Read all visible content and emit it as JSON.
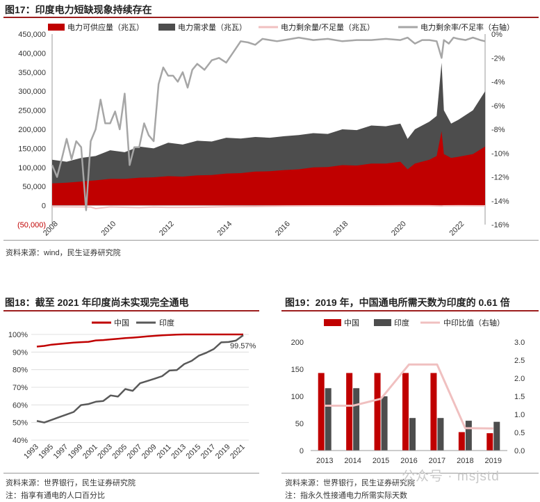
{
  "figures": {
    "fig17": {
      "title": "图17：印度电力短缺现象持续存在",
      "source": "资料来源：wind，民生证券研究院"
    },
    "fig18": {
      "title": "图18：截至 2021 年印度尚未实现完全通电",
      "source": "资料来源：世界银行，民生证券研究院",
      "note": "注：指享有通电的人口百分比"
    },
    "fig19": {
      "title": "图19：2019 年，中国通电所需天数为印度的 0.61 倍",
      "source": "资料来源：世界银行，民生证券研究院",
      "note": "注：指永久性接通电力所需实际天数"
    }
  },
  "watermark": "公众号 · msjstd",
  "colors": {
    "red": "#c00000",
    "gray": "#4d4d4d",
    "pink": "#f0c0c0",
    "lightgray": "#a6a6a6",
    "rule": "#9c1c1c"
  },
  "chart_data": [
    {
      "id": "fig17",
      "type": "area",
      "legend": [
        "电力可供应量（兆瓦）",
        "电力需求量（兆瓦）",
        "电力剩余量/不足量（兆瓦）",
        "电力剩余率/不足率（右轴）"
      ],
      "x_ticks": [
        "2008",
        "2010",
        "2012",
        "2014",
        "2016",
        "2018",
        "2020",
        "2022"
      ],
      "x_range": [
        2008.0,
        2022.92
      ],
      "y_ticks": [
        "450,000",
        "400,000",
        "350,000",
        "300,000",
        "250,000",
        "200,000",
        "150,000",
        "100,000",
        "50,000",
        "0",
        "(50,000)"
      ],
      "ylim": [
        -50000,
        450000
      ],
      "y2_ticks": [
        "0%",
        "-2%",
        "-4%",
        "-6%",
        "-8%",
        "-10%",
        "-12%",
        "-14%",
        "-16%"
      ],
      "y2lim": [
        -16,
        0
      ],
      "series": [
        {
          "name": "电力需求量（兆瓦）",
          "axis": "left",
          "x": [
            2008.0,
            2008.5,
            2009.0,
            2009.5,
            2010.0,
            2010.5,
            2011.0,
            2011.5,
            2012.0,
            2012.5,
            2013.0,
            2013.5,
            2014.0,
            2014.5,
            2015.0,
            2015.5,
            2016.0,
            2016.5,
            2017.0,
            2017.5,
            2018.0,
            2018.5,
            2019.0,
            2019.5,
            2020.0,
            2020.25,
            2020.5,
            2021.0,
            2021.25,
            2021.42,
            2021.5,
            2021.75,
            2022.0,
            2022.5,
            2022.92
          ],
          "values": [
            120000,
            115000,
            125000,
            130000,
            145000,
            140000,
            155000,
            150000,
            165000,
            160000,
            170000,
            168000,
            178000,
            176000,
            180000,
            178000,
            182000,
            185000,
            190000,
            188000,
            200000,
            198000,
            210000,
            208000,
            215000,
            175000,
            200000,
            220000,
            235000,
            375000,
            250000,
            215000,
            225000,
            250000,
            300000
          ]
        },
        {
          "name": "电力可供应量（兆瓦）",
          "axis": "left",
          "x": [
            2008.0,
            2008.5,
            2009.0,
            2009.5,
            2010.0,
            2010.5,
            2011.0,
            2011.5,
            2012.0,
            2012.5,
            2013.0,
            2013.5,
            2014.0,
            2014.5,
            2015.0,
            2015.5,
            2016.0,
            2016.5,
            2017.0,
            2017.5,
            2018.0,
            2018.5,
            2019.0,
            2019.5,
            2020.0,
            2020.25,
            2020.5,
            2021.0,
            2021.25,
            2021.42,
            2021.5,
            2021.75,
            2022.0,
            2022.5,
            2022.92
          ],
          "values": [
            58000,
            60000,
            63000,
            66000,
            70000,
            70000,
            73000,
            74000,
            77000,
            76000,
            79000,
            80000,
            84000,
            85000,
            89000,
            90000,
            93000,
            95000,
            100000,
            101000,
            106000,
            105000,
            110000,
            110000,
            115000,
            95000,
            110000,
            120000,
            130000,
            195000,
            135000,
            125000,
            128000,
            135000,
            155000
          ]
        },
        {
          "name": "电力剩余量/不足量（兆瓦）",
          "axis": "left",
          "x": [
            2008.0,
            2009.33,
            2009.5,
            2010.0,
            2011.0,
            2011.5,
            2012.0,
            2013.0,
            2014.0,
            2015.0,
            2016.0,
            2017.0,
            2018.0,
            2019.0,
            2020.0,
            2021.0,
            2021.42,
            2021.5,
            2022.0,
            2022.92
          ],
          "values": [
            -3000,
            -4000,
            -8000,
            -3500,
            -5500,
            -4000,
            -5000,
            -4500,
            -3000,
            -2500,
            -1500,
            -900,
            -800,
            -700,
            -500,
            -600,
            -1500,
            -800,
            -600,
            -700
          ]
        },
        {
          "name": "电力剩余率/不足率（右轴）",
          "axis": "right",
          "x": [
            2008.0,
            2008.17,
            2008.33,
            2008.5,
            2008.67,
            2008.83,
            2009.0,
            2009.17,
            2009.33,
            2009.5,
            2009.67,
            2009.83,
            2010.0,
            2010.17,
            2010.33,
            2010.5,
            2010.67,
            2010.83,
            2011.0,
            2011.17,
            2011.33,
            2011.5,
            2011.67,
            2011.83,
            2012.0,
            2012.17,
            2012.33,
            2012.5,
            2012.67,
            2012.83,
            2013.0,
            2013.25,
            2013.5,
            2013.75,
            2014.0,
            2014.25,
            2014.5,
            2014.75,
            2015.0,
            2015.25,
            2015.5,
            2015.75,
            2016.0,
            2016.5,
            2017.0,
            2017.5,
            2018.0,
            2018.5,
            2019.0,
            2019.5,
            2020.0,
            2020.25,
            2020.5,
            2020.75,
            2021.0,
            2021.25,
            2021.42,
            2021.5,
            2021.67,
            2021.83,
            2022.0,
            2022.25,
            2022.5,
            2022.75,
            2022.92
          ],
          "values": [
            -11.0,
            -12.0,
            -10.5,
            -8.8,
            -10.5,
            -9.0,
            -9.5,
            -14.8,
            -9.0,
            -8.0,
            -5.5,
            -7.5,
            -7.5,
            -6.5,
            -8.0,
            -5.0,
            -11.0,
            -9.5,
            -9.5,
            -7.5,
            -8.5,
            -9.0,
            -4.2,
            -2.8,
            -3.5,
            -3.5,
            -4.0,
            -3.2,
            -4.5,
            -3.0,
            -2.5,
            -3.0,
            -2.2,
            -2.0,
            -2.4,
            -1.5,
            -0.6,
            -0.7,
            -0.9,
            -0.4,
            -0.5,
            -0.6,
            -0.5,
            -0.3,
            -0.5,
            -0.4,
            -0.6,
            -0.5,
            -0.5,
            -0.4,
            -0.5,
            -0.3,
            -0.8,
            -0.5,
            -0.5,
            -0.6,
            -2.0,
            -0.5,
            -0.8,
            -0.3,
            -0.4,
            -0.5,
            -0.3,
            -0.5,
            -0.6
          ]
        }
      ]
    },
    {
      "id": "fig18",
      "type": "line",
      "legend": [
        "中国",
        "印度"
      ],
      "categories": [
        "1993",
        "1994",
        "1995",
        "1996",
        "1997",
        "1998",
        "1999",
        "2000",
        "2001",
        "2002",
        "2003",
        "2004",
        "2005",
        "2006",
        "2007",
        "2008",
        "2009",
        "2010",
        "2011",
        "2012",
        "2013",
        "2014",
        "2015",
        "2016",
        "2017",
        "2018",
        "2019",
        "2020",
        "2021"
      ],
      "x_tick_labels": [
        "1993",
        "1995",
        "1997",
        "1999",
        "2001",
        "2003",
        "2005",
        "2007",
        "2009",
        "2011",
        "2013",
        "2015",
        "2017",
        "2019",
        "2021"
      ],
      "y_ticks": [
        "100%",
        "90%",
        "80%",
        "70%",
        "60%",
        "50%",
        "40%"
      ],
      "ylim": [
        40,
        100
      ],
      "series": [
        {
          "name": "中国",
          "values": [
            93.1,
            93.5,
            94.2,
            94.6,
            95.0,
            95.4,
            95.6,
            95.8,
            96.6,
            96.8,
            97.2,
            97.5,
            97.9,
            98.2,
            98.5,
            98.9,
            99.2,
            99.5,
            99.7,
            99.9,
            100,
            100,
            100,
            100,
            100,
            100,
            100,
            100,
            100
          ]
        },
        {
          "name": "印度",
          "values": [
            50.9,
            50.0,
            51.5,
            53.0,
            54.5,
            56.0,
            59.9,
            60.5,
            61.8,
            62.2,
            65.4,
            64.7,
            69.0,
            68.0,
            72.3,
            73.6,
            74.9,
            76.3,
            79.5,
            79.8,
            83.2,
            85.0,
            88.0,
            89.6,
            91.7,
            95.5,
            95.7,
            96.5,
            99.57
          ]
        }
      ],
      "annotation": "99.57%"
    },
    {
      "id": "fig19",
      "type": "bar",
      "legend": [
        "中国",
        "印度",
        "中印比值（右轴）"
      ],
      "categories": [
        "2013",
        "2014",
        "2015",
        "2016",
        "2017",
        "2018",
        "2019"
      ],
      "y_ticks": [
        "200",
        "150",
        "100",
        "50",
        "0"
      ],
      "ylim": [
        0,
        200
      ],
      "y2_ticks": [
        "3.0",
        "2.5",
        "2.0",
        "1.5",
        "1.0",
        "0.5",
        "0.0"
      ],
      "y2lim": [
        0,
        3
      ],
      "series": [
        {
          "name": "中国",
          "values": [
            143,
            143,
            143,
            143,
            143,
            34,
            32
          ]
        },
        {
          "name": "印度",
          "values": [
            115,
            115,
            100,
            60,
            60,
            55,
            53
          ]
        },
        {
          "name": "中印比值（右轴）",
          "axis": "right",
          "values": [
            1.24,
            1.24,
            1.43,
            2.38,
            2.38,
            0.62,
            0.61
          ]
        }
      ]
    }
  ]
}
